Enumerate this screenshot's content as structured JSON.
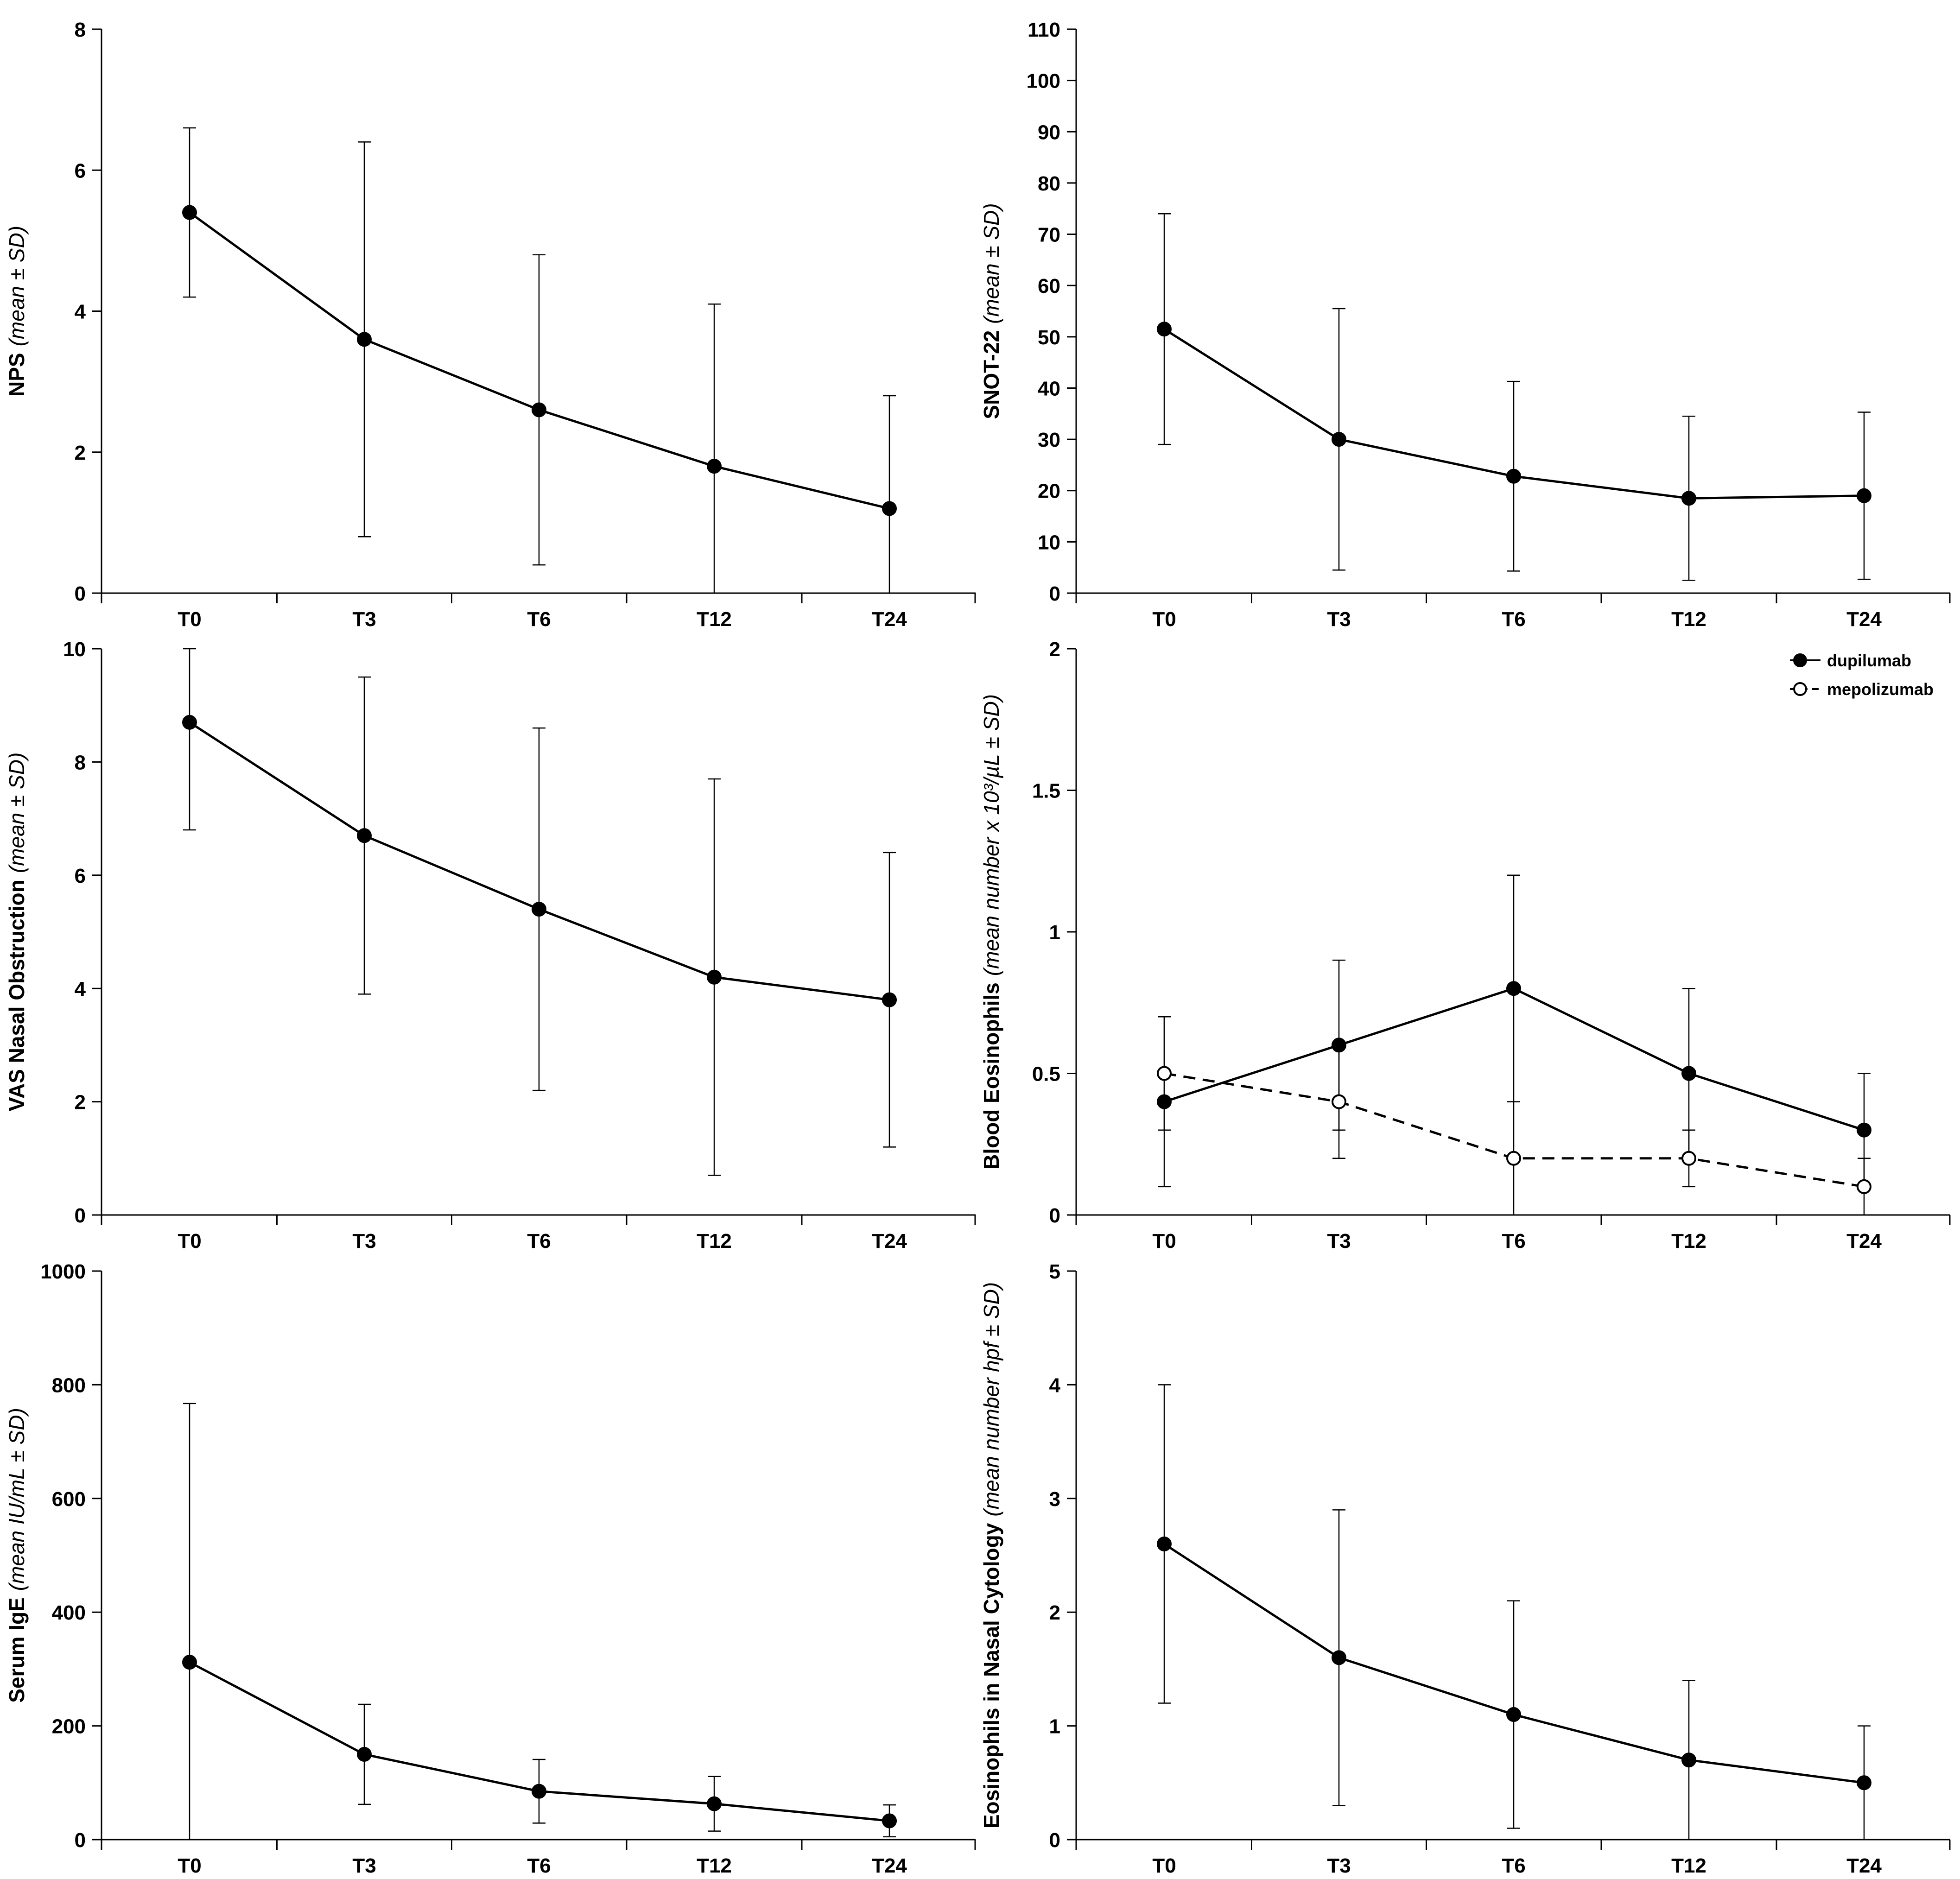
{
  "colors": {
    "ink": "#000000",
    "background": "#ffffff",
    "open_marker_fill": "#ffffff"
  },
  "chart_data": [
    {
      "id": "nps",
      "type": "line",
      "title": "",
      "ylabel": "NPS",
      "ylabel_unit": "(mean ± SD)",
      "xlabel": "",
      "categories": [
        "T0",
        "T3",
        "T6",
        "T12",
        "T24"
      ],
      "ylim": [
        0,
        8
      ],
      "yticks": [
        0,
        2,
        4,
        6,
        8
      ],
      "ytick_labels": [
        "0",
        "2",
        "4",
        "6",
        "8"
      ],
      "series": [
        {
          "name": "dupilumab",
          "style": "solid",
          "marker": "filled",
          "values": [
            5.4,
            3.6,
            2.6,
            1.8,
            1.2
          ],
          "sd": [
            1.2,
            2.8,
            2.2,
            2.3,
            1.6
          ]
        }
      ]
    },
    {
      "id": "snot22",
      "type": "line",
      "title": "",
      "ylabel": "SNOT-22",
      "ylabel_unit": "(mean ± SD)",
      "xlabel": "",
      "categories": [
        "T0",
        "T3",
        "T6",
        "T12",
        "T24"
      ],
      "ylim": [
        0,
        110
      ],
      "yticks": [
        0,
        10,
        20,
        30,
        40,
        50,
        60,
        70,
        80,
        90,
        100,
        110
      ],
      "ytick_labels": [
        "0",
        "10",
        "20",
        "30",
        "40",
        "50",
        "60",
        "70",
        "80",
        "90",
        "100",
        "110"
      ],
      "series": [
        {
          "name": "dupilumab",
          "style": "solid",
          "marker": "filled",
          "values": [
            51.5,
            30,
            22.8,
            18.5,
            19
          ],
          "sd": [
            22.5,
            25.5,
            18.5,
            16,
            16.3
          ]
        }
      ]
    },
    {
      "id": "vas",
      "type": "line",
      "title": "",
      "ylabel": "VAS Nasal Obstruction",
      "ylabel_unit": "(mean ± SD)",
      "xlabel": "",
      "categories": [
        "T0",
        "T3",
        "T6",
        "T12",
        "T24"
      ],
      "ylim": [
        0,
        10
      ],
      "yticks": [
        0,
        2,
        4,
        6,
        8,
        10
      ],
      "ytick_labels": [
        "0",
        "2",
        "4",
        "6",
        "8",
        "10"
      ],
      "series": [
        {
          "name": "dupilumab",
          "style": "solid",
          "marker": "filled",
          "values": [
            8.7,
            6.7,
            5.4,
            4.2,
            3.8
          ],
          "sd": [
            1.9,
            2.8,
            3.2,
            3.5,
            2.6
          ]
        }
      ]
    },
    {
      "id": "blood_eos",
      "type": "line",
      "title": "",
      "ylabel": "Blood Eosinophils",
      "ylabel_unit": "(mean number x 10³/µL ± SD)",
      "xlabel": "",
      "categories": [
        "T0",
        "T3",
        "T6",
        "T12",
        "T24"
      ],
      "ylim": [
        0,
        2
      ],
      "yticks": [
        0,
        0.5,
        1,
        1.5,
        2
      ],
      "ytick_labels": [
        "0",
        "0.5",
        "1",
        "1.5",
        "2"
      ],
      "legend": {
        "position": "top-right"
      },
      "series": [
        {
          "name": "dupilumab",
          "style": "solid",
          "marker": "filled",
          "values": [
            0.4,
            0.6,
            0.8,
            0.5,
            0.3
          ],
          "sd": [
            0.3,
            0.3,
            0.4,
            0.3,
            0.2
          ]
        },
        {
          "name": "mepolizumab",
          "style": "dashed",
          "marker": "open",
          "values": [
            0.5,
            0.4,
            0.2,
            0.2,
            0.1
          ],
          "sd": [
            0.2,
            0.2,
            0.2,
            0.1,
            0.1
          ]
        }
      ]
    },
    {
      "id": "ige",
      "type": "line",
      "title": "",
      "ylabel": "Serum IgE",
      "ylabel_unit": "(mean IU/mL ± SD)",
      "xlabel": "",
      "categories": [
        "T0",
        "T3",
        "T6",
        "T12",
        "T24"
      ],
      "ylim": [
        0,
        1000
      ],
      "yticks": [
        0,
        200,
        400,
        600,
        800,
        1000
      ],
      "ytick_labels": [
        "0",
        "200",
        "400",
        "600",
        "800",
        "1000"
      ],
      "series": [
        {
          "name": "dupilumab",
          "style": "solid",
          "marker": "filled",
          "values": [
            312,
            150,
            85,
            63,
            33
          ],
          "sd": [
            455,
            88,
            56,
            48,
            28
          ]
        }
      ]
    },
    {
      "id": "nasal_cyto",
      "type": "line",
      "title": "",
      "ylabel": "Eosinophils in Nasal Cytology",
      "ylabel_unit": "(mean number hpf ± SD)",
      "xlabel": "",
      "categories": [
        "T0",
        "T3",
        "T6",
        "T12",
        "T24"
      ],
      "ylim": [
        0,
        5
      ],
      "yticks": [
        0,
        1,
        2,
        3,
        4,
        5
      ],
      "ytick_labels": [
        "0",
        "1",
        "2",
        "3",
        "4",
        "5"
      ],
      "series": [
        {
          "name": "dupilumab",
          "style": "solid",
          "marker": "filled",
          "values": [
            2.6,
            1.6,
            1.1,
            0.7,
            0.5
          ],
          "sd": [
            1.4,
            1.3,
            1.0,
            0.7,
            0.5
          ]
        }
      ]
    }
  ]
}
